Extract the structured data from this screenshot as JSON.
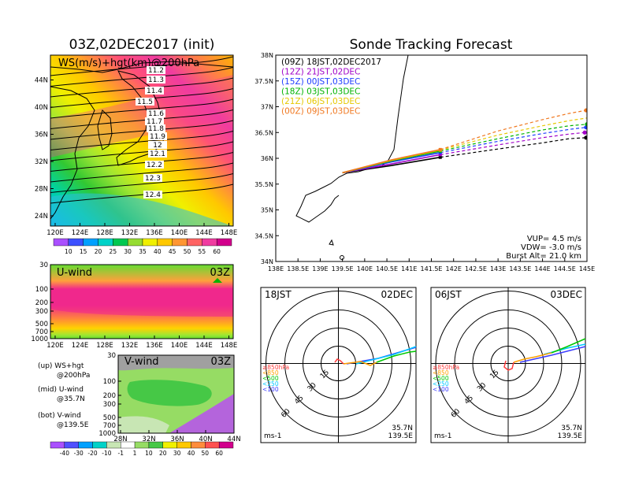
{
  "left_title": "03Z,02DEC2017 (init)",
  "right_title": "Sonde Tracking Forecast",
  "ws_panel": {
    "label": "WS(m/s)+hgt(km)@200hPa",
    "x_ticks": [
      "120E",
      "124E",
      "128E",
      "132E",
      "136E",
      "140E",
      "144E",
      "148E"
    ],
    "y_ticks": [
      "24N",
      "28N",
      "32N",
      "36N",
      "40N",
      "44N"
    ],
    "height_labels": [
      "11.2",
      "11.3",
      "11.4",
      "11.5",
      "11.6",
      "11.7",
      "11.8",
      "11.9",
      "12",
      "12.1",
      "12.2",
      "12.3",
      "12.4"
    ]
  },
  "ws_colorbar": {
    "labels": [
      "10",
      "15",
      "20",
      "25",
      "30",
      "35",
      "40",
      "45",
      "50",
      "55",
      "60"
    ]
  },
  "u_panel": {
    "title": "U-wind",
    "time": "03Z",
    "y_ticks": [
      "30",
      "100",
      "200",
      "300",
      "500",
      "700",
      "1000"
    ],
    "x_ticks": [
      "120E",
      "124E",
      "128E",
      "132E",
      "136E",
      "140E",
      "144E",
      "148E"
    ]
  },
  "v_panel": {
    "title": "V-wind",
    "time": "03Z",
    "y_ticks": [
      "30",
      "100",
      "200",
      "300",
      "500",
      "700",
      "1000"
    ],
    "x_ticks": [
      "28N",
      "32N",
      "36N",
      "40N",
      "44N"
    ]
  },
  "vw_colorbar": {
    "labels": [
      "-40",
      "-30",
      "-20",
      "-10",
      "-1",
      "1",
      "10",
      "20",
      "30",
      "40",
      "50",
      "60"
    ]
  },
  "legend": [
    {
      "line1": "(up) WS+hgt",
      "line2": "@200hPa"
    },
    {
      "line1": "(mid) U-wind",
      "line2": "@35.7N"
    },
    {
      "line1": "(bot) V-wind",
      "line2": "@139.5E"
    }
  ],
  "track_panel": {
    "x_ticks": [
      "138E",
      "138.5E",
      "139E",
      "139.5E",
      "140E",
      "140.5E",
      "141E",
      "141.5E",
      "142E",
      "142.5E",
      "143E",
      "143.5E",
      "144E",
      "144.5E",
      "145E"
    ],
    "y_ticks": [
      "34N",
      "34.5N",
      "35N",
      "35.5N",
      "36N",
      "36.5N",
      "37N",
      "37.5N",
      "38N"
    ],
    "info": [
      "VUP= 4.5 m/s",
      "VDW= -3.0 m/s",
      "Burst Alt= 21.0 km"
    ]
  },
  "chart_data": {
    "type": "line",
    "xlim": [
      138,
      145
    ],
    "ylim": [
      34,
      38
    ],
    "series": [
      {
        "name": "(09Z)  18JST,02DEC2017",
        "color": "#000000",
        "ascent": [
          [
            139.5,
            35.72
          ],
          [
            140.6,
            35.86
          ],
          [
            141.7,
            36.02
          ]
        ],
        "descent": [
          [
            141.7,
            36.02
          ],
          [
            143.0,
            36.18
          ],
          [
            144.0,
            36.3
          ],
          [
            144.6,
            36.38
          ],
          [
            144.98,
            36.4
          ]
        ]
      },
      {
        "name": "(12Z)  21JST,02DEC",
        "color": "#a000c8",
        "ascent": [
          [
            139.5,
            35.72
          ],
          [
            140.6,
            35.89
          ],
          [
            141.7,
            36.07
          ]
        ],
        "descent": [
          [
            141.7,
            36.07
          ],
          [
            143.0,
            36.26
          ],
          [
            144.0,
            36.4
          ],
          [
            144.6,
            36.47
          ],
          [
            144.95,
            36.5
          ]
        ]
      },
      {
        "name": "(15Z)  00JST,03DEC",
        "color": "#1e3cff",
        "ascent": [
          [
            139.5,
            35.72
          ],
          [
            140.6,
            35.93
          ],
          [
            141.7,
            36.11
          ]
        ],
        "descent": [
          [
            141.7,
            36.11
          ],
          [
            143.0,
            36.33
          ],
          [
            144.0,
            36.48
          ],
          [
            144.6,
            36.56
          ],
          [
            144.98,
            36.6
          ]
        ]
      },
      {
        "name": "(18Z)  03JST,03DEC",
        "color": "#00b400",
        "ascent": [
          [
            139.5,
            35.72
          ],
          [
            140.6,
            35.95
          ],
          [
            141.7,
            36.14
          ]
        ],
        "descent": [
          [
            141.7,
            36.14
          ],
          [
            143.0,
            36.38
          ],
          [
            144.0,
            36.55
          ],
          [
            144.6,
            36.63
          ],
          [
            145.0,
            36.66
          ]
        ]
      },
      {
        "name": "(21Z)  06JST,03DEC",
        "color": "#e6c800",
        "ascent": [
          [
            139.5,
            35.72
          ],
          [
            140.6,
            35.96
          ],
          [
            141.7,
            36.16
          ]
        ],
        "descent": [
          [
            141.7,
            36.16
          ],
          [
            143.0,
            36.45
          ],
          [
            144.0,
            36.63
          ],
          [
            144.6,
            36.73
          ],
          [
            145.06,
            36.79
          ]
        ]
      },
      {
        "name": "(00Z)  09JST,03DEC",
        "color": "#f07820",
        "ascent": [
          [
            139.5,
            35.72
          ],
          [
            140.6,
            35.97
          ],
          [
            141.7,
            36.17
          ]
        ],
        "descent": [
          [
            141.7,
            36.17
          ],
          [
            143.0,
            36.53
          ],
          [
            144.0,
            36.75
          ],
          [
            144.6,
            36.87
          ],
          [
            144.98,
            36.93
          ]
        ]
      }
    ]
  },
  "hodographs": [
    {
      "time_left": "18JST",
      "date_right": "02DEC",
      "ring_labels": [
        "15",
        "30",
        "45",
        "60"
      ],
      "pressure_legend": [
        "≥850hPa",
        "<850",
        "<500",
        "<250",
        "<100"
      ],
      "pressure_colors": [
        "#ff3c3c",
        "#ffa000",
        "#00c800",
        "#00c8ff",
        "#3c3cff"
      ],
      "unit": "ms-1",
      "loc1": "35.7N",
      "loc2": "139.5E"
    },
    {
      "time_left": "06JST",
      "date_right": "03DEC",
      "ring_labels": [
        "15",
        "30",
        "45",
        "60"
      ],
      "pressure_legend": [
        "≥850hPa",
        "<850",
        "<500",
        "<250",
        "<100"
      ],
      "pressure_colors": [
        "#ff3c3c",
        "#ffa000",
        "#00c800",
        "#00c8ff",
        "#3c3cff"
      ],
      "unit": "ms-1",
      "loc1": "35.7N",
      "loc2": "139.5E"
    }
  ]
}
